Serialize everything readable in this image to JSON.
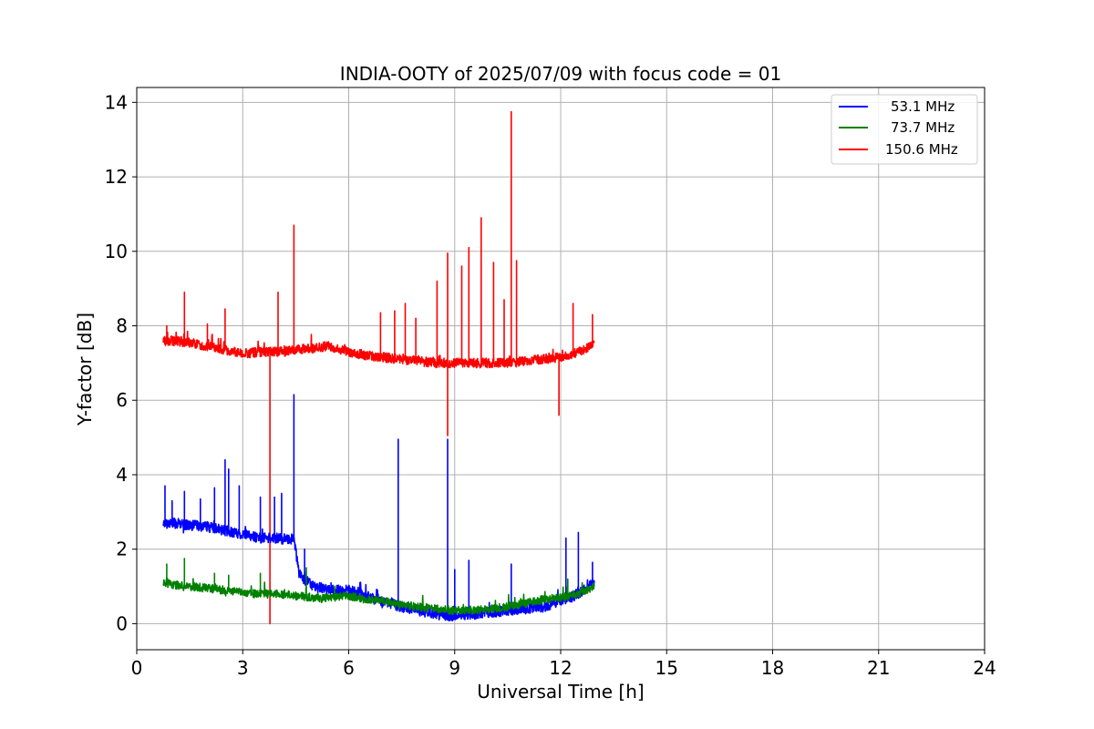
{
  "chart_data": {
    "type": "line",
    "title": "INDIA-OOTY of 2025/07/09 with focus code = 01",
    "xlabel": "Universal Time [h]",
    "ylabel": "Y-factor [dB]",
    "xlim": [
      0,
      24
    ],
    "ylim": [
      -0.7,
      14.4
    ],
    "xticks": [
      0,
      3,
      6,
      9,
      12,
      15,
      18,
      21,
      24
    ],
    "yticks": [
      0,
      2,
      4,
      6,
      8,
      10,
      12,
      14
    ],
    "grid": true,
    "legend_position": "top-right",
    "series": [
      {
        "name": "53.1 MHz",
        "color": "#0000ff",
        "x": [
          0.75,
          1.0,
          1.5,
          2.0,
          2.5,
          3.0,
          3.5,
          4.0,
          4.3,
          4.45,
          4.6,
          5.0,
          5.5,
          6.0,
          6.5,
          7.0,
          7.5,
          8.0,
          8.5,
          9.0,
          9.5,
          10.0,
          10.5,
          11.0,
          11.5,
          12.0,
          12.5,
          12.95
        ],
        "y": [
          2.7,
          2.7,
          2.65,
          2.6,
          2.5,
          2.4,
          2.3,
          2.3,
          2.25,
          2.3,
          1.3,
          1.0,
          0.9,
          0.9,
          0.75,
          0.6,
          0.45,
          0.35,
          0.25,
          0.2,
          0.25,
          0.3,
          0.35,
          0.4,
          0.45,
          0.6,
          0.8,
          1.1
        ],
        "spikes": [
          {
            "x": 0.8,
            "y": 3.7
          },
          {
            "x": 1.0,
            "y": 3.3
          },
          {
            "x": 1.35,
            "y": 3.55
          },
          {
            "x": 1.8,
            "y": 3.35
          },
          {
            "x": 2.2,
            "y": 3.65
          },
          {
            "x": 2.5,
            "y": 4.4
          },
          {
            "x": 2.6,
            "y": 4.15
          },
          {
            "x": 2.9,
            "y": 3.7
          },
          {
            "x": 3.5,
            "y": 3.4
          },
          {
            "x": 3.9,
            "y": 3.4
          },
          {
            "x": 4.1,
            "y": 3.5
          },
          {
            "x": 4.45,
            "y": 6.15
          },
          {
            "x": 4.75,
            "y": 2.0
          },
          {
            "x": 5.5,
            "y": 1.1
          },
          {
            "x": 7.4,
            "y": 4.95
          },
          {
            "x": 8.8,
            "y": 4.95
          },
          {
            "x": 9.0,
            "y": 1.45
          },
          {
            "x": 9.4,
            "y": 1.7
          },
          {
            "x": 10.6,
            "y": 1.6
          },
          {
            "x": 12.15,
            "y": 2.3
          },
          {
            "x": 12.5,
            "y": 2.45
          },
          {
            "x": 12.9,
            "y": 1.65
          }
        ]
      },
      {
        "name": "73.7 MHz",
        "color": "#008000",
        "x": [
          0.75,
          1.0,
          1.5,
          2.0,
          2.5,
          3.0,
          3.5,
          4.0,
          4.5,
          5.0,
          5.5,
          6.0,
          6.5,
          7.0,
          7.5,
          8.0,
          8.5,
          9.0,
          9.5,
          10.0,
          10.5,
          11.0,
          11.5,
          12.0,
          12.5,
          12.95
        ],
        "y": [
          1.1,
          1.05,
          1.0,
          0.95,
          0.9,
          0.85,
          0.8,
          0.8,
          0.75,
          0.7,
          0.7,
          0.75,
          0.65,
          0.6,
          0.5,
          0.45,
          0.4,
          0.35,
          0.35,
          0.4,
          0.45,
          0.55,
          0.65,
          0.7,
          0.8,
          1.0
        ],
        "spikes": [
          {
            "x": 0.85,
            "y": 1.6
          },
          {
            "x": 1.35,
            "y": 1.75
          },
          {
            "x": 2.2,
            "y": 1.35
          },
          {
            "x": 2.6,
            "y": 1.3
          },
          {
            "x": 3.5,
            "y": 1.35
          },
          {
            "x": 4.8,
            "y": 1.5
          },
          {
            "x": 12.2,
            "y": 1.2
          }
        ]
      },
      {
        "name": "150.6 MHz",
        "color": "#ff0000",
        "x": [
          0.75,
          1.0,
          1.5,
          2.0,
          2.5,
          3.0,
          3.5,
          4.0,
          4.5,
          5.0,
          5.5,
          6.0,
          6.5,
          7.0,
          7.5,
          8.0,
          8.5,
          9.0,
          9.5,
          10.0,
          10.5,
          11.0,
          11.5,
          12.0,
          12.5,
          12.95
        ],
        "y": [
          7.6,
          7.6,
          7.55,
          7.45,
          7.35,
          7.25,
          7.3,
          7.3,
          7.35,
          7.4,
          7.45,
          7.3,
          7.2,
          7.15,
          7.1,
          7.05,
          7.0,
          7.0,
          7.0,
          7.0,
          7.0,
          7.05,
          7.1,
          7.15,
          7.3,
          7.5
        ],
        "spikes": [
          {
            "x": 0.85,
            "y": 8.0
          },
          {
            "x": 1.35,
            "y": 8.9
          },
          {
            "x": 2.0,
            "y": 8.05
          },
          {
            "x": 2.5,
            "y": 8.45
          },
          {
            "x": 3.77,
            "y": 0.0
          },
          {
            "x": 4.0,
            "y": 8.9
          },
          {
            "x": 4.45,
            "y": 10.7
          },
          {
            "x": 6.9,
            "y": 8.35
          },
          {
            "x": 7.3,
            "y": 8.4
          },
          {
            "x": 7.6,
            "y": 8.6
          },
          {
            "x": 7.9,
            "y": 8.2
          },
          {
            "x": 8.5,
            "y": 9.2
          },
          {
            "x": 8.8,
            "y": 9.95
          },
          {
            "x": 8.8,
            "y": 5.05
          },
          {
            "x": 9.2,
            "y": 9.6
          },
          {
            "x": 9.4,
            "y": 10.1
          },
          {
            "x": 9.75,
            "y": 10.9
          },
          {
            "x": 10.1,
            "y": 9.7
          },
          {
            "x": 10.4,
            "y": 8.7
          },
          {
            "x": 10.6,
            "y": 13.75
          },
          {
            "x": 10.75,
            "y": 9.75
          },
          {
            "x": 11.95,
            "y": 5.6
          },
          {
            "x": 12.35,
            "y": 8.6
          },
          {
            "x": 12.9,
            "y": 8.3
          }
        ]
      }
    ]
  }
}
